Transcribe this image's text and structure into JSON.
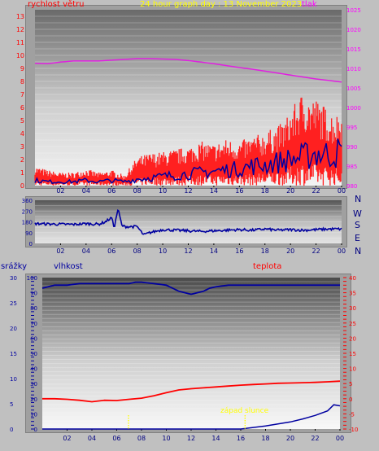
{
  "header": {
    "left_label": "rychlost větru",
    "title": "24 hour graph day : 13 November 2023",
    "right_label": "tlak"
  },
  "colors": {
    "wind": "#ff0000",
    "gust_band": "#ff2020",
    "wind_avg": "#0000a0",
    "pressure": "#e020e0",
    "direction": "#0000a0",
    "humidity": "#0000a0",
    "temperature": "#ff0000",
    "rain": "#0000a0",
    "sunset": "#ffff00",
    "title": "#ffff00",
    "axis_label_red": "#ff0000",
    "axis_label_magenta": "#ff00ff",
    "axis_label_blue": "#0000a0",
    "direction_letters": "#000080"
  },
  "x_axis": {
    "labels": [
      "02",
      "04",
      "06",
      "08",
      "10",
      "12",
      "14",
      "16",
      "18",
      "20",
      "22",
      "00"
    ]
  },
  "panel_wind": {
    "left_ticks": [
      "0",
      "1",
      "2",
      "3",
      "4",
      "5",
      "6",
      "7",
      "8",
      "9",
      "10",
      "11",
      "12",
      "13"
    ],
    "left_range": [
      0,
      13.5
    ],
    "right_ticks": [
      "980",
      "985",
      "990",
      "995",
      "1000",
      "1005",
      "1010",
      "1015",
      "1020",
      "1025"
    ],
    "right_range": [
      980,
      1025
    ]
  },
  "panel_direction": {
    "ticks": [
      "0",
      "90",
      "180",
      "270",
      "360"
    ],
    "range": [
      0,
      360
    ],
    "compass": [
      "N",
      "W",
      "S",
      "E",
      "N"
    ]
  },
  "panel_bottom": {
    "label_rain": "srážky",
    "label_humidity": "vlhkost",
    "label_temperature": "teplota",
    "rain_ticks": [
      "0",
      "5",
      "10",
      "15",
      "20",
      "25",
      "30"
    ],
    "rain_range": [
      0,
      30
    ],
    "humidity_ticks": [
      "0",
      "10",
      "20",
      "30",
      "40",
      "50",
      "60",
      "70",
      "80",
      "90",
      "100"
    ],
    "humidity_range": [
      0,
      100
    ],
    "temperature_ticks": [
      "-10",
      "-5",
      "0",
      "5",
      "10",
      "15",
      "20",
      "25",
      "30",
      "35",
      "40"
    ],
    "temperature_range": [
      -10,
      40
    ],
    "sunset_label": "západ slunce",
    "sun_events_hours": [
      6.95,
      16.35
    ]
  },
  "chart_data": [
    {
      "type": "line",
      "title": "24 hour graph day : 13 November 2023",
      "ylabel": "rychlost větru",
      "y2label": "tlak",
      "x_unit": "hour",
      "xlim": [
        0,
        24
      ],
      "ylim": [
        0,
        13.5
      ],
      "y2lim": [
        980,
        1025
      ],
      "series": [
        {
          "axis": "left",
          "role": "gust",
          "x": [
            0,
            1,
            2,
            3,
            4,
            5,
            6,
            7,
            7.5,
            8,
            9,
            10,
            11,
            12,
            13,
            14,
            15,
            16,
            17,
            18,
            19,
            19.5,
            20,
            20.5,
            21,
            21.5,
            22,
            22.5,
            23,
            23.5,
            24
          ],
          "values": [
            1.5,
            1.2,
            1.0,
            1.0,
            1.3,
            1.0,
            1.2,
            0.8,
            1.5,
            2.2,
            2.5,
            2.6,
            2.8,
            3.0,
            3.4,
            3.2,
            3.6,
            3.4,
            3.8,
            4.1,
            4.6,
            5.0,
            5.8,
            6.5,
            7.3,
            6.8,
            6.7,
            6.3,
            5.8,
            5.5,
            5.7
          ]
        },
        {
          "axis": "left",
          "role": "average",
          "x": [
            0,
            1,
            2,
            3,
            4,
            5,
            6,
            7,
            8,
            9,
            10,
            11,
            12,
            13,
            14,
            15,
            16,
            17,
            18,
            19,
            20,
            21,
            22,
            23,
            24
          ],
          "values": [
            0.4,
            0.3,
            0.3,
            0.3,
            0.4,
            0.3,
            0.4,
            0.3,
            0.5,
            0.6,
            0.7,
            0.8,
            0.9,
            1.0,
            1.1,
            1.2,
            1.3,
            1.5,
            1.6,
            1.8,
            2.0,
            2.2,
            2.5,
            2.4,
            2.6
          ]
        },
        {
          "axis": "right",
          "role": "pressure",
          "x": [
            0,
            1,
            2,
            3,
            4,
            5,
            6,
            7,
            8,
            9,
            10,
            11,
            12,
            13,
            14,
            15,
            16,
            17,
            18,
            19,
            20,
            21,
            22,
            23,
            24
          ],
          "values": [
            1011.3,
            1011.2,
            1011.6,
            1011.9,
            1011.9,
            1011.9,
            1012.1,
            1012.3,
            1012.5,
            1012.5,
            1012.4,
            1012.3,
            1012.0,
            1011.6,
            1011.2,
            1010.7,
            1010.2,
            1009.8,
            1009.3,
            1008.8,
            1008.3,
            1007.8,
            1007.3,
            1006.9,
            1006.5
          ]
        }
      ]
    },
    {
      "type": "line",
      "xlim": [
        0,
        24
      ],
      "ylim": [
        0,
        360
      ],
      "series": [
        {
          "role": "direction",
          "x": [
            0,
            1,
            2,
            3,
            4,
            5,
            5.5,
            6,
            6.2,
            6.5,
            6.8,
            7,
            8,
            8.5,
            9,
            10,
            11,
            12,
            13,
            14,
            15,
            16,
            17,
            18,
            19,
            20,
            21,
            22,
            23,
            24
          ],
          "values": [
            165,
            162,
            160,
            158,
            165,
            160,
            180,
            215,
            130,
            290,
            150,
            140,
            140,
            70,
            90,
            115,
            110,
            105,
            100,
            105,
            110,
            115,
            110,
            120,
            110,
            115,
            110,
            115,
            120,
            120
          ]
        }
      ]
    },
    {
      "type": "line",
      "ylabel": "srážky",
      "y2label": "teplota",
      "xlim": [
        0,
        24
      ],
      "series": [
        {
          "role": "humidity",
          "axis": "humidity",
          "x": [
            0,
            1,
            2,
            3,
            4,
            5,
            6,
            7,
            7.5,
            8,
            9,
            10,
            10.5,
            11,
            11.5,
            12,
            12.5,
            13,
            13.5,
            14,
            15,
            16,
            17,
            18,
            19,
            20,
            21,
            22,
            23,
            24
          ],
          "values": [
            93,
            95,
            95,
            96,
            96,
            96,
            96,
            96,
            97,
            97,
            96,
            95,
            93,
            91,
            90,
            89,
            90,
            91,
            93,
            94,
            95,
            95,
            95,
            95,
            95,
            95,
            95,
            95,
            95,
            95
          ]
        },
        {
          "role": "temperature",
          "axis": "temperature",
          "x": [
            0,
            1,
            2,
            3,
            4,
            5,
            6,
            7,
            8,
            9,
            10,
            11,
            12,
            13,
            14,
            15,
            16,
            17,
            18,
            19,
            20,
            21,
            22,
            23,
            24
          ],
          "values": [
            0.0,
            0.0,
            -0.2,
            -0.5,
            -1.0,
            -0.5,
            -0.6,
            -0.2,
            0.2,
            1.0,
            2.0,
            2.9,
            3.3,
            3.6,
            3.9,
            4.2,
            4.5,
            4.7,
            4.9,
            5.1,
            5.2,
            5.3,
            5.4,
            5.6,
            5.8
          ]
        },
        {
          "role": "rain",
          "axis": "rain",
          "x": [
            0,
            16,
            17,
            18,
            19,
            20,
            21,
            22,
            23,
            23.5,
            24
          ],
          "values": [
            0,
            0,
            0.3,
            0.6,
            1.0,
            1.4,
            2.0,
            2.7,
            3.6,
            4.8,
            4.6
          ]
        }
      ]
    }
  ]
}
